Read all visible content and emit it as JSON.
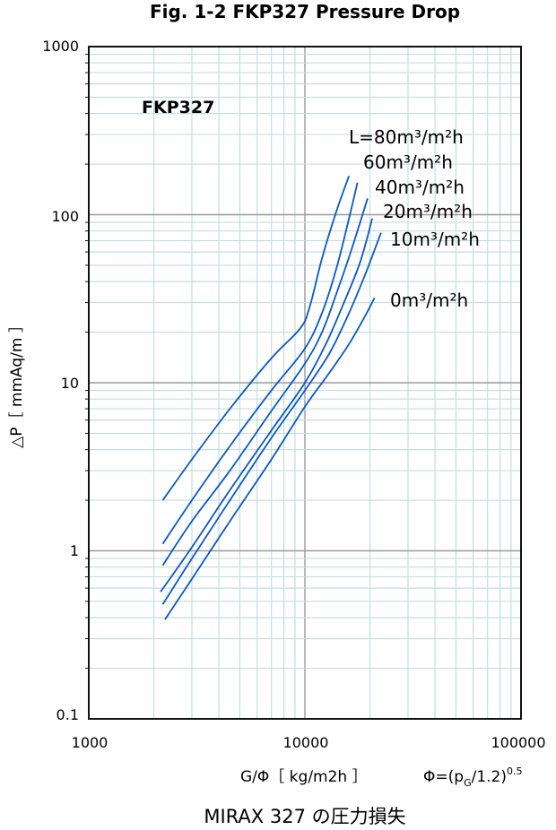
{
  "chart_data": {
    "type": "line",
    "title": "Fig. 1-2 FKP327 Pressure Drop",
    "inner_title": "FKP327",
    "xlabel": "G/Φ［ kg/m2h ］",
    "formula": {
      "prefix": "Φ=(p",
      "subscript": "G",
      "suffix": "/1.2)",
      "superscript": "0.5"
    },
    "ylabel": "△P［ mmAq/m ］",
    "caption": "MIRAX 327 の圧力損失",
    "x_scale": "log",
    "y_scale": "log",
    "xlim": [
      1000,
      100000
    ],
    "ylim": [
      0.1,
      1000
    ],
    "x_ticks": [
      "1000",
      "10000",
      "100000"
    ],
    "y_ticks": [
      "0.1",
      "1",
      "10",
      "100",
      "1000"
    ],
    "grid": true,
    "series": [
      {
        "name": "L=80m³/m²h",
        "x": [
          2200,
          3000,
          4500,
          7000,
          9500,
          10500,
          12000,
          14000,
          16000
        ],
        "y": [
          2.0,
          3.5,
          7.0,
          14,
          21,
          28,
          55,
          105,
          170
        ]
      },
      {
        "name": "60m³/m²h",
        "x": [
          2200,
          3000,
          4500,
          7000,
          10000,
          12000,
          14000,
          16000,
          17500
        ],
        "y": [
          1.1,
          2.0,
          4.2,
          9.0,
          16,
          26,
          48,
          95,
          155
        ]
      },
      {
        "name": "40m³/m²h",
        "x": [
          2200,
          3000,
          4500,
          7000,
          10000,
          12000,
          14000,
          16500,
          19500
        ],
        "y": [
          0.82,
          1.5,
          3.0,
          6.8,
          13,
          20,
          34,
          63,
          125
        ]
      },
      {
        "name": "20m³/m²h",
        "x": [
          2150,
          3000,
          4500,
          7000,
          10000,
          12500,
          15000,
          18000,
          20500
        ],
        "y": [
          0.57,
          1.05,
          2.3,
          5.2,
          10,
          17,
          29,
          52,
          95
        ]
      },
      {
        "name": "10m³/m²h",
        "x": [
          2200,
          3000,
          4500,
          7000,
          10000,
          13000,
          16000,
          19000,
          22500
        ],
        "y": [
          0.48,
          0.9,
          2.0,
          4.7,
          9.0,
          15,
          26,
          44,
          78
        ]
      },
      {
        "name": "0m³/m²h",
        "x": [
          2250,
          3000,
          4500,
          7000,
          10000,
          13000,
          16000,
          19000,
          21000
        ],
        "y": [
          0.39,
          0.68,
          1.5,
          3.5,
          7.2,
          11.5,
          17,
          25,
          32
        ]
      }
    ],
    "colors": {
      "series": "#0a58c4",
      "grid_minor": "#c4dede",
      "grid_major": "#9a9a9a",
      "axis": "#111111"
    }
  }
}
